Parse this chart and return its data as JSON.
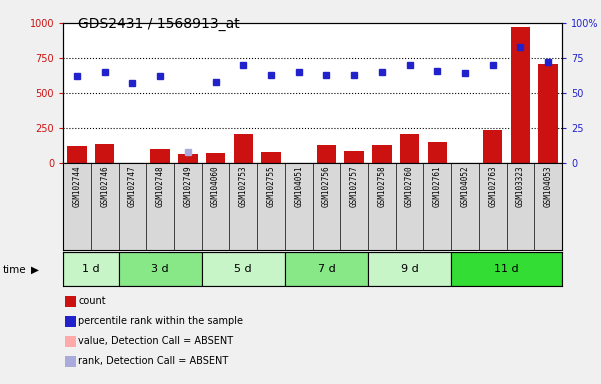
{
  "title": "GDS2431 / 1568913_at",
  "samples": [
    "GSM102744",
    "GSM102746",
    "GSM102747",
    "GSM102748",
    "GSM102749",
    "GSM104060",
    "GSM102753",
    "GSM102755",
    "GSM104051",
    "GSM102756",
    "GSM102757",
    "GSM102758",
    "GSM102760",
    "GSM102761",
    "GSM104052",
    "GSM102763",
    "GSM103323",
    "GSM104053"
  ],
  "time_groups": [
    {
      "label": "1 d",
      "start": 0,
      "end": 2,
      "color": "#c8f5c8"
    },
    {
      "label": "3 d",
      "start": 2,
      "end": 5,
      "color": "#88e888"
    },
    {
      "label": "5 d",
      "start": 5,
      "end": 8,
      "color": "#c8f5c8"
    },
    {
      "label": "7 d",
      "start": 8,
      "end": 11,
      "color": "#88e888"
    },
    {
      "label": "9 d",
      "start": 11,
      "end": 14,
      "color": "#c8f5c8"
    },
    {
      "label": "11 d",
      "start": 14,
      "end": 18,
      "color": "#33dd33"
    }
  ],
  "count_values": [
    120,
    140,
    0,
    100,
    65,
    70,
    210,
    80,
    0,
    130,
    90,
    130,
    210,
    150,
    0,
    240,
    970,
    710
  ],
  "count_absent": [
    false,
    false,
    true,
    false,
    false,
    false,
    false,
    false,
    true,
    false,
    false,
    false,
    false,
    false,
    true,
    false,
    false,
    false
  ],
  "rank_values": [
    62,
    65,
    57,
    62,
    8,
    58,
    70,
    63,
    65,
    63,
    63,
    65,
    70,
    66,
    64,
    70,
    83,
    72
  ],
  "rank_absent": [
    false,
    false,
    false,
    false,
    true,
    false,
    false,
    false,
    false,
    false,
    false,
    false,
    false,
    false,
    false,
    false,
    false,
    false
  ],
  "left_ylim": [
    0,
    1000
  ],
  "right_ylim": [
    0,
    100
  ],
  "left_yticks": [
    0,
    250,
    500,
    750,
    1000
  ],
  "right_yticks": [
    0,
    25,
    50,
    75,
    100
  ],
  "grid_lines": [
    250,
    500,
    750
  ],
  "bar_color_present": "#cc1111",
  "bar_color_absent": "#ffaaaa",
  "dot_color_present": "#2222cc",
  "dot_color_absent": "#aaaadd",
  "legend_items": [
    {
      "label": "count",
      "color": "#cc1111"
    },
    {
      "label": "percentile rank within the sample",
      "color": "#2222cc"
    },
    {
      "label": "value, Detection Call = ABSENT",
      "color": "#ffaaaa"
    },
    {
      "label": "rank, Detection Call = ABSENT",
      "color": "#aaaadd"
    }
  ],
  "fig_bg": "#f0f0f0",
  "plot_bg": "#ffffff",
  "label_bg": "#d8d8d8"
}
